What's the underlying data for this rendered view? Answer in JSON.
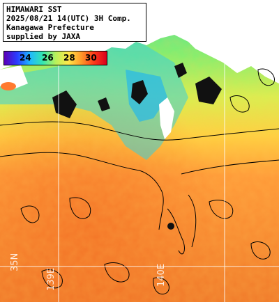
{
  "title": {
    "line1": "HIMAWARI SST",
    "line2": "2025/08/21 14(UTC) 3H Comp.",
    "line3": "Kanagawa Prefecture",
    "line4": "supplied by JAXA"
  },
  "colorbar": {
    "labels": [
      "24",
      "26",
      "28",
      "30"
    ],
    "gradient": [
      "#5b00b5",
      "#2a3cff",
      "#1fb8ff",
      "#34e6b0",
      "#b6f25c",
      "#ffe84a",
      "#ff9a2a",
      "#ff3b1a",
      "#d8001c"
    ]
  },
  "axes": {
    "lat_label": "35N",
    "lon_labels": [
      "139E",
      "140E"
    ]
  },
  "colors": {
    "land": "#ffffff",
    "cloud": "#111111",
    "grid": "#ffffff"
  }
}
